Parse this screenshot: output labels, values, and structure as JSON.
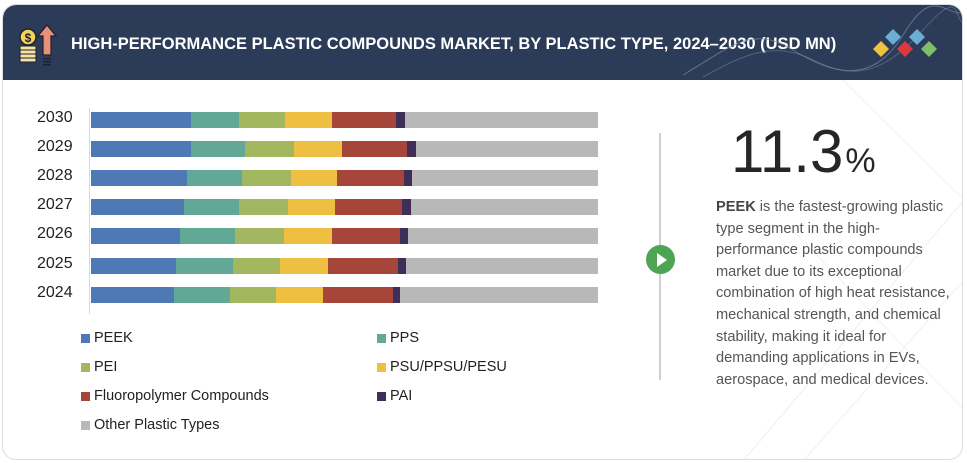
{
  "header": {
    "title": "HIGH-PERFORMANCE PLASTIC COMPOUNDS MARKET, BY PLASTIC TYPE, 2024–2030 (USD MN)",
    "icon": "money-growth-icon",
    "logo": "brand-diamonds-logo"
  },
  "colors": {
    "header_bg": "#2b3b58",
    "PEEK": "#4e79b5",
    "PPS": "#62a896",
    "PEI": "#a3b760",
    "PSU/PPSU/PESU": "#efbf41",
    "Fluoropolymer Compounds": "#a6453a",
    "PAI": "#3f2e57",
    "Other Plastic Types": "#b8b8b8",
    "accent_green": "#4da553"
  },
  "chart_data": {
    "type": "bar",
    "orientation": "horizontal",
    "stacked": true,
    "title": "HIGH-PERFORMANCE PLASTIC COMPOUNDS MARKET, BY PLASTIC TYPE, 2024–2030 (USD MN)",
    "xlabel": "",
    "ylabel": "",
    "grid": false,
    "legend_position": "bottom",
    "categories": [
      "2030",
      "2029",
      "2028",
      "2027",
      "2026",
      "2025",
      "2024"
    ],
    "series": [
      {
        "name": "PEEK",
        "values": [
          19.7,
          19.7,
          18.9,
          18.3,
          17.6,
          16.8,
          16.4
        ]
      },
      {
        "name": "PPS",
        "values": [
          9.5,
          10.7,
          10.8,
          10.8,
          10.8,
          11.2,
          11.0
        ]
      },
      {
        "name": "PEI",
        "values": [
          9.1,
          9.7,
          9.7,
          9.7,
          9.7,
          9.3,
          9.1
        ]
      },
      {
        "name": "PSU/PPSU/PESU",
        "values": [
          9.3,
          9.5,
          9.1,
          9.3,
          9.5,
          9.5,
          9.3
        ]
      },
      {
        "name": "Fluoropolymer Compounds",
        "values": [
          12.6,
          12.8,
          13.2,
          13.2,
          13.4,
          13.8,
          13.8
        ]
      },
      {
        "name": "PAI",
        "values": [
          1.8,
          1.8,
          1.6,
          1.8,
          1.6,
          1.6,
          1.4
        ]
      },
      {
        "name": "Other Plastic Types",
        "values": [
          38.0,
          35.8,
          36.7,
          36.9,
          37.4,
          37.8,
          39.0
        ]
      }
    ],
    "units": "approximate share of bar width (%)"
  },
  "legend": [
    {
      "label": "PEEK",
      "color": "#4e79b5"
    },
    {
      "label": "PPS",
      "color": "#62a896"
    },
    {
      "label": "PEI",
      "color": "#a3b760"
    },
    {
      "label": "PSU/PPSU/PESU",
      "color": "#efbf41"
    },
    {
      "label": "Fluoropolymer Compounds",
      "color": "#a6453a"
    },
    {
      "label": "PAI",
      "color": "#3f2e57"
    },
    {
      "label": "Other Plastic Types",
      "color": "#b8b8b8"
    }
  ],
  "insight": {
    "value": "11.3",
    "unit": "%",
    "highlight": "PEEK",
    "text": " is the fastest-growing plastic type segment in the high-performance plastic compounds market due to its exceptional combination of high heat resistance, mechanical strength, and chemical stability, making it ideal for demanding applications in EVs, aerospace, and medical devices."
  }
}
